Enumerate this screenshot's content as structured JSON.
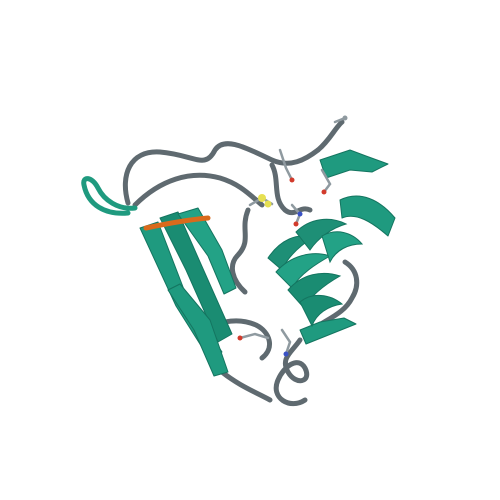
{
  "image": {
    "subject": "protein-ribbon-structure",
    "background": "#ffffff"
  },
  "colors": {
    "strand": "#1f9a7f",
    "strand_dark": "#147560",
    "helix": "#1e8f76",
    "coil": "#5f6a70",
    "ligand_chain": "#d96a1c",
    "atom_carbon": "#8f9aa0",
    "atom_oxygen": "#d23b2c",
    "atom_sulfur": "#e6e052",
    "atom_nitrogen": "#3a52c6"
  }
}
